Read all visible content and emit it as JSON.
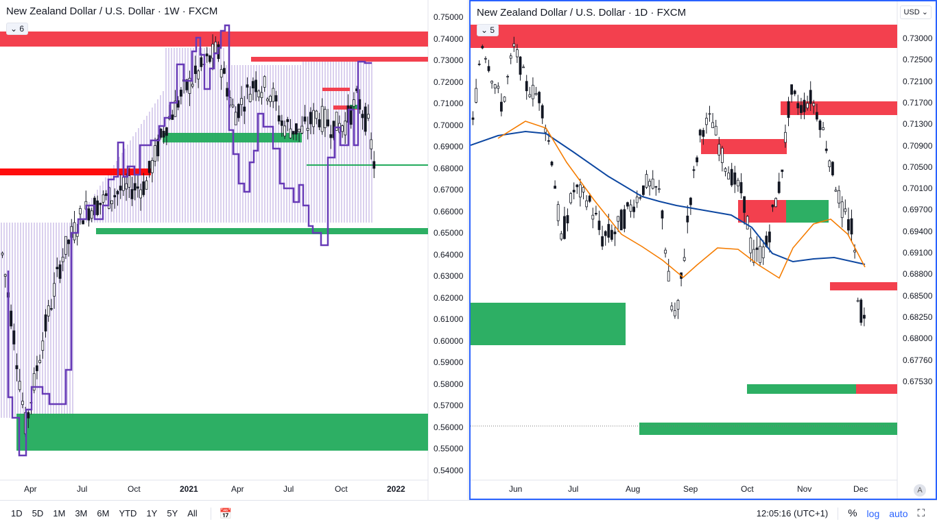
{
  "left_chart": {
    "title": "New Zealand Dollar / U.S. Dollar · 1W · FXCM",
    "legend_count": "6",
    "price_ticks": [
      "0.75000",
      "0.74000",
      "0.73000",
      "0.72000",
      "0.71000",
      "0.70000",
      "0.69000",
      "0.68000",
      "0.67000",
      "0.66000",
      "0.65000",
      "0.64000",
      "0.63000",
      "0.62000",
      "0.61000",
      "0.60000",
      "0.59000",
      "0.58000",
      "0.57000",
      "0.56000",
      "0.55000",
      "0.54000"
    ],
    "time_ticks": [
      "Apr",
      "Jul",
      "Oct",
      "2021",
      "Apr",
      "Jul",
      "Oct",
      "2022"
    ]
  },
  "right_chart": {
    "title": "New Zealand Dollar / U.S. Dollar · 1D · FXCM",
    "legend_count": "5",
    "currency": "USD",
    "price_ticks": [
      "0.73000",
      "0.72500",
      "0.72100",
      "0.71700",
      "0.71300",
      "0.70900",
      "0.70500",
      "0.70100",
      "0.69700",
      "0.69400",
      "0.69100",
      "0.68800",
      "0.68500",
      "0.68250",
      "0.68000",
      "0.67760",
      "0.67530"
    ],
    "time_ticks": [
      "Jun",
      "Jul",
      "Aug",
      "Sep",
      "Oct",
      "Nov",
      "Dec"
    ],
    "auto_scale_label": "A"
  },
  "bottom_bar": {
    "ranges": [
      "1D",
      "5D",
      "1M",
      "3M",
      "6M",
      "YTD",
      "1Y",
      "5Y",
      "All"
    ],
    "clock": "12:05:16 (UTC+1)",
    "percent_label": "%",
    "log_label": "log",
    "auto_label": "auto"
  },
  "colors": {
    "up": "#ffffff",
    "down": "#131722",
    "supply": "#f23645",
    "demand": "#089981",
    "accent": "#2962ff",
    "ma_blue": "#0d47a1",
    "ma_orange": "#f57c00",
    "step": "#673ab7"
  }
}
